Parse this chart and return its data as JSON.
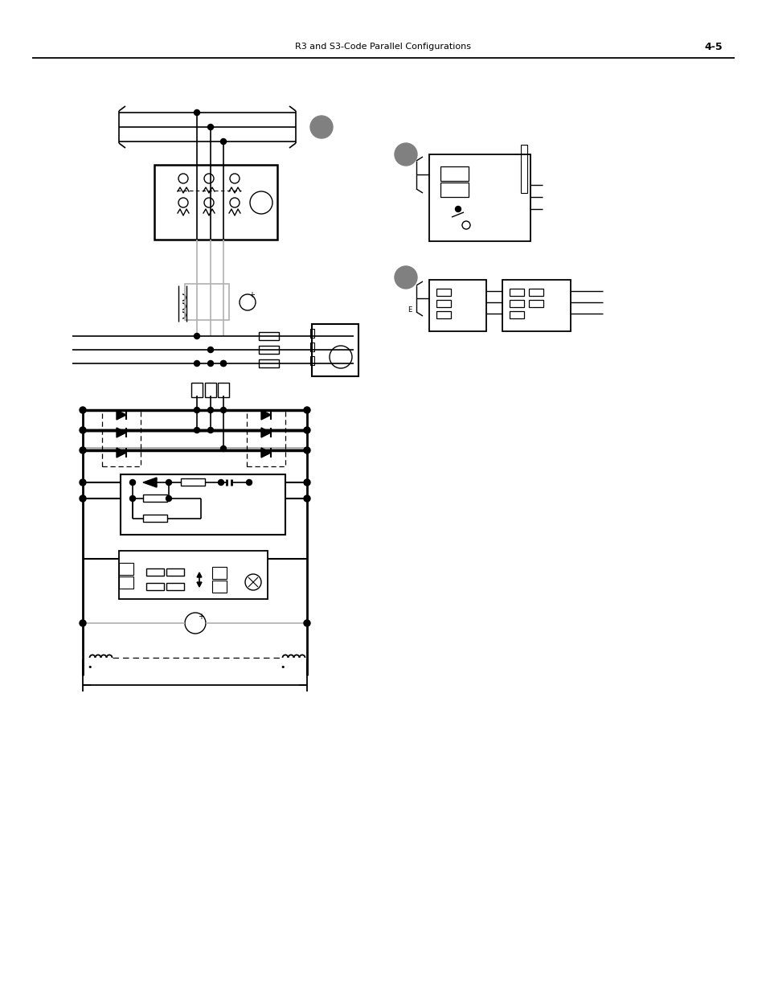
{
  "title": "R3 and S3-Code Parallel Configurations",
  "page": "4-5",
  "title_fontsize": 8,
  "page_fontsize": 9,
  "bg_color": "#ffffff",
  "line_color": "#000000",
  "gray_color": "#808080",
  "light_gray": "#b0b0b0"
}
